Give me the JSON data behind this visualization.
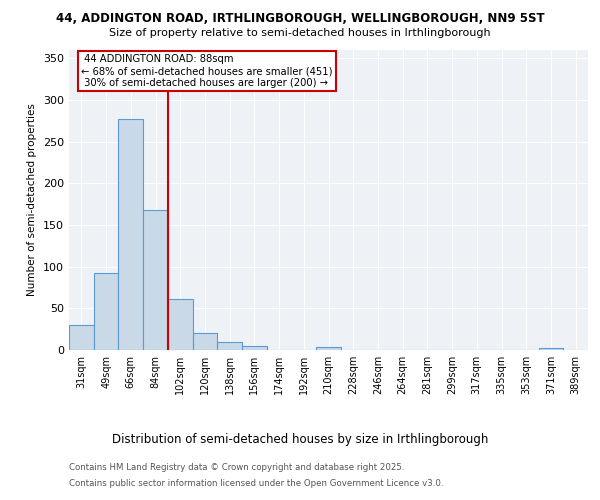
{
  "title1": "44, ADDINGTON ROAD, IRTHLINGBOROUGH, WELLINGBOROUGH, NN9 5ST",
  "title2": "Size of property relative to semi-detached houses in Irthlingborough",
  "xlabel": "Distribution of semi-detached houses by size in Irthlingborough",
  "ylabel": "Number of semi-detached properties",
  "bar_labels": [
    "31sqm",
    "49sqm",
    "66sqm",
    "84sqm",
    "102sqm",
    "120sqm",
    "138sqm",
    "156sqm",
    "174sqm",
    "192sqm",
    "210sqm",
    "228sqm",
    "246sqm",
    "264sqm",
    "281sqm",
    "299sqm",
    "317sqm",
    "335sqm",
    "353sqm",
    "371sqm",
    "389sqm"
  ],
  "bar_values": [
    30,
    93,
    277,
    168,
    61,
    20,
    10,
    5,
    0,
    0,
    4,
    0,
    0,
    0,
    0,
    0,
    0,
    0,
    0,
    2,
    0
  ],
  "bar_color": "#c9d9e8",
  "bar_edge_color": "#5b9bd5",
  "property_label": "44 ADDINGTON ROAD: 88sqm",
  "pct_smaller": 68,
  "count_smaller": 451,
  "pct_larger": 30,
  "count_larger": 200,
  "vline_color": "#cc0000",
  "vline_x": 3.5,
  "annotation_box_color": "#cc0000",
  "ylim": [
    0,
    360
  ],
  "yticks": [
    0,
    50,
    100,
    150,
    200,
    250,
    300,
    350
  ],
  "footer1": "Contains HM Land Registry data © Crown copyright and database right 2025.",
  "footer2": "Contains public sector information licensed under the Open Government Licence v3.0.",
  "bg_color": "#eef2f7"
}
